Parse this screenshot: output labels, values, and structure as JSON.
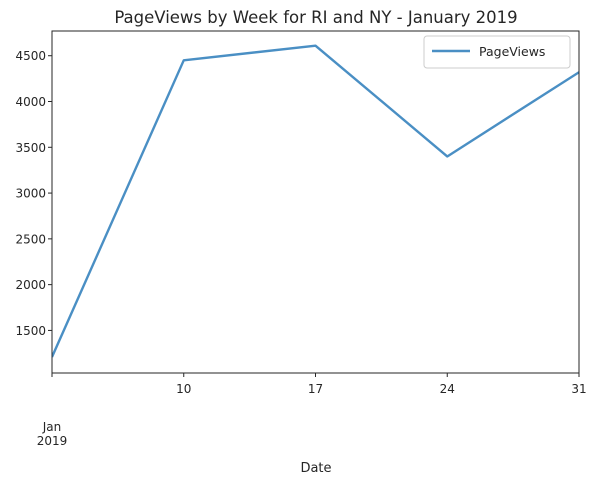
{
  "chart_data": {
    "type": "line",
    "title": "PageViews by Week for RI and NY - January 2019",
    "xlabel": "Date",
    "ylabel": "",
    "x": [
      "2019-01-03",
      "2019-01-10",
      "2019-01-17",
      "2019-01-24",
      "2019-01-31"
    ],
    "x_ticks": [
      {
        "date": "2019-01-03",
        "label": "Jan",
        "sublabel": "2019"
      },
      {
        "date": "2019-01-10",
        "label": "10",
        "sublabel": ""
      },
      {
        "date": "2019-01-17",
        "label": "17",
        "sublabel": ""
      },
      {
        "date": "2019-01-24",
        "label": "24",
        "sublabel": ""
      },
      {
        "date": "2019-01-31",
        "label": "31",
        "sublabel": ""
      }
    ],
    "xlim": [
      "2019-01-03",
      "2019-01-31"
    ],
    "y_ticks": [
      1500,
      2000,
      2500,
      3000,
      3500,
      4000,
      4500
    ],
    "ylim": [
      1035,
      4770
    ],
    "grid": false,
    "legend": "top-right",
    "series": [
      {
        "name": "PageViews",
        "color": "#4a8fc4",
        "values": [
          1210,
          4450,
          4610,
          3400,
          4320
        ]
      }
    ]
  }
}
